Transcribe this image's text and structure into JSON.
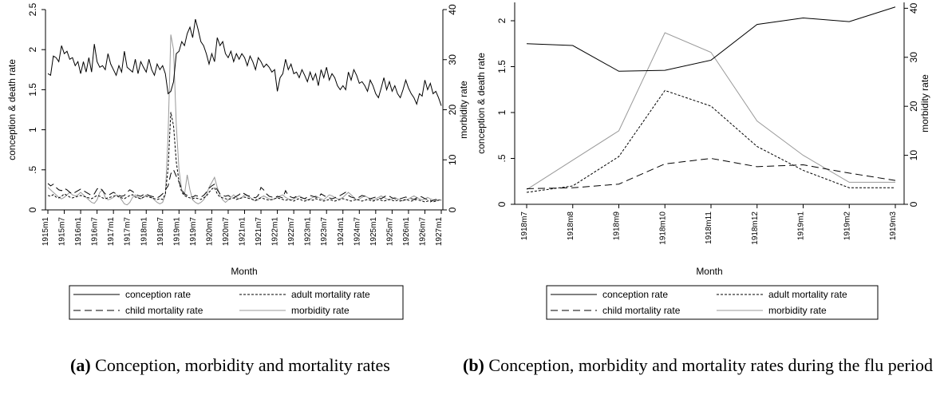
{
  "chart_data": [
    {
      "type": "line",
      "xlabel": "Month",
      "ylabel": "conception & death rate",
      "y2label": "morbidity rate",
      "caption_label": "(a)",
      "caption": "Conception, morbidity and mortality rates",
      "categories": [
        "1915m1",
        null,
        null,
        null,
        null,
        null,
        "1915m7",
        null,
        null,
        null,
        null,
        null,
        "1916m1",
        null,
        null,
        null,
        null,
        null,
        "1916m7",
        null,
        null,
        null,
        null,
        null,
        "1917m1",
        null,
        null,
        null,
        null,
        null,
        "1917m7",
        null,
        null,
        null,
        null,
        null,
        "1918m1",
        null,
        null,
        null,
        null,
        null,
        "1918m7",
        null,
        null,
        null,
        null,
        null,
        "1919m1",
        null,
        null,
        null,
        null,
        null,
        "1919m7",
        null,
        null,
        null,
        null,
        null,
        "1920m1",
        null,
        null,
        null,
        null,
        null,
        "1920m7",
        null,
        null,
        null,
        null,
        null,
        "1921m1",
        null,
        null,
        null,
        null,
        null,
        "1921m7",
        null,
        null,
        null,
        null,
        null,
        "1922m1",
        null,
        null,
        null,
        null,
        null,
        "1922m7",
        null,
        null,
        null,
        null,
        null,
        "1923m1",
        null,
        null,
        null,
        null,
        null,
        "1923m7",
        null,
        null,
        null,
        null,
        null,
        "1924m1",
        null,
        null,
        null,
        null,
        null,
        "1924m7",
        null,
        null,
        null,
        null,
        null,
        "1925m1",
        null,
        null,
        null,
        null,
        null,
        "1925m7",
        null,
        null,
        null,
        null,
        null,
        "1926m1",
        null,
        null,
        null,
        null,
        null,
        "1926m7",
        null,
        null,
        null,
        null,
        null,
        "1927m1"
      ],
      "ylim": [
        0,
        2.5
      ],
      "yticks": [
        0,
        {
          "value": 0.5,
          "label": ".5"
        },
        1,
        1.5,
        2,
        2.5
      ],
      "y2lim": [
        0,
        40
      ],
      "y2ticks": [
        0,
        10,
        20,
        30,
        40
      ],
      "series": [
        {
          "name": "conception rate",
          "color": "#000000",
          "dash": "solid",
          "values": [
            1.7,
            1.68,
            1.92,
            1.9,
            1.85,
            2.05,
            1.95,
            1.98,
            1.88,
            1.9,
            1.8,
            1.85,
            1.7,
            1.85,
            1.72,
            1.9,
            1.72,
            2.07,
            1.85,
            1.78,
            1.8,
            1.75,
            1.95,
            1.82,
            1.75,
            1.68,
            1.8,
            1.72,
            1.98,
            1.78,
            1.75,
            1.72,
            1.88,
            1.7,
            1.85,
            1.78,
            1.72,
            1.88,
            1.75,
            1.68,
            1.82,
            1.75,
            1.8,
            1.7,
            1.45,
            1.48,
            1.6,
            1.95,
            1.98,
            2.1,
            2.05,
            2.2,
            2.28,
            2.15,
            2.38,
            2.25,
            2.1,
            2.05,
            1.95,
            1.82,
            1.95,
            1.85,
            2.15,
            2.05,
            2.1,
            1.95,
            1.9,
            1.98,
            1.85,
            1.95,
            1.88,
            1.95,
            1.9,
            1.8,
            1.92,
            1.85,
            1.75,
            1.9,
            1.85,
            1.78,
            1.82,
            1.78,
            1.72,
            1.75,
            1.48,
            1.65,
            1.7,
            1.88,
            1.75,
            1.82,
            1.7,
            1.72,
            1.65,
            1.75,
            1.68,
            1.6,
            1.72,
            1.62,
            1.7,
            1.55,
            1.75,
            1.65,
            1.78,
            1.62,
            1.7,
            1.65,
            1.55,
            1.5,
            1.55,
            1.5,
            1.72,
            1.62,
            1.75,
            1.68,
            1.58,
            1.6,
            1.55,
            1.48,
            1.62,
            1.55,
            1.45,
            1.4,
            1.52,
            1.65,
            1.5,
            1.6,
            1.48,
            1.55,
            1.45,
            1.4,
            1.5,
            1.62,
            1.52,
            1.45,
            1.4,
            1.32,
            1.45,
            1.42,
            1.62,
            1.5,
            1.58,
            1.45,
            1.48,
            1.4,
            1.3
          ]
        },
        {
          "name": "adult mortality rate",
          "color": "#000000",
          "dash": "short-dash",
          "values": [
            0.18,
            0.17,
            0.19,
            0.16,
            0.15,
            0.17,
            0.2,
            0.18,
            0.16,
            0.15,
            0.16,
            0.17,
            0.18,
            0.17,
            0.16,
            0.15,
            0.14,
            0.16,
            0.18,
            0.17,
            0.15,
            0.14,
            0.15,
            0.16,
            0.17,
            0.18,
            0.16,
            0.15,
            0.14,
            0.16,
            0.18,
            0.19,
            0.16,
            0.15,
            0.14,
            0.16,
            0.17,
            0.16,
            0.15,
            0.14,
            0.13,
            0.14,
            0.13,
            0.2,
            0.52,
            1.22,
            1.05,
            0.6,
            0.35,
            0.22,
            0.18,
            0.16,
            0.15,
            0.14,
            0.15,
            0.14,
            0.13,
            0.15,
            0.17,
            0.22,
            0.26,
            0.28,
            0.2,
            0.16,
            0.15,
            0.14,
            0.13,
            0.14,
            0.15,
            0.13,
            0.14,
            0.15,
            0.16,
            0.15,
            0.14,
            0.13,
            0.12,
            0.14,
            0.15,
            0.14,
            0.13,
            0.12,
            0.13,
            0.14,
            0.15,
            0.14,
            0.13,
            0.12,
            0.13,
            0.12,
            0.11,
            0.13,
            0.14,
            0.12,
            0.11,
            0.12,
            0.13,
            0.12,
            0.14,
            0.13,
            0.12,
            0.11,
            0.12,
            0.13,
            0.12,
            0.11,
            0.12,
            0.13,
            0.14,
            0.13,
            0.12,
            0.11,
            0.12,
            0.13,
            0.12,
            0.11,
            0.12,
            0.13,
            0.12,
            0.11,
            0.12,
            0.13,
            0.12,
            0.11,
            0.12,
            0.13,
            0.12,
            0.11,
            0.12,
            0.11,
            0.12,
            0.13,
            0.12,
            0.11,
            0.12,
            0.13,
            0.12,
            0.11,
            0.1,
            0.11,
            0.12,
            0.1,
            0.11,
            0.12,
            0.13
          ]
        },
        {
          "name": "child mortality rate",
          "color": "#000000",
          "dash": "long-dash",
          "values": [
            0.33,
            0.3,
            0.32,
            0.28,
            0.25,
            0.24,
            0.27,
            0.25,
            0.22,
            0.2,
            0.22,
            0.24,
            0.26,
            0.24,
            0.22,
            0.2,
            0.18,
            0.2,
            0.26,
            0.28,
            0.24,
            0.2,
            0.18,
            0.2,
            0.22,
            0.2,
            0.18,
            0.17,
            0.18,
            0.22,
            0.25,
            0.23,
            0.2,
            0.18,
            0.17,
            0.19,
            0.2,
            0.18,
            0.17,
            0.16,
            0.15,
            0.17,
            0.2,
            0.25,
            0.3,
            0.45,
            0.5,
            0.42,
            0.35,
            0.25,
            0.2,
            0.18,
            0.17,
            0.16,
            0.18,
            0.17,
            0.16,
            0.18,
            0.22,
            0.27,
            0.3,
            0.32,
            0.25,
            0.2,
            0.18,
            0.17,
            0.18,
            0.16,
            0.15,
            0.17,
            0.19,
            0.22,
            0.2,
            0.18,
            0.17,
            0.16,
            0.15,
            0.18,
            0.28,
            0.25,
            0.2,
            0.17,
            0.16,
            0.15,
            0.17,
            0.16,
            0.15,
            0.24,
            0.18,
            0.16,
            0.15,
            0.17,
            0.16,
            0.15,
            0.14,
            0.16,
            0.18,
            0.17,
            0.16,
            0.15,
            0.2,
            0.18,
            0.16,
            0.15,
            0.14,
            0.15,
            0.17,
            0.18,
            0.2,
            0.22,
            0.18,
            0.16,
            0.15,
            0.14,
            0.16,
            0.18,
            0.17,
            0.15,
            0.14,
            0.15,
            0.16,
            0.15,
            0.14,
            0.16,
            0.18,
            0.17,
            0.15,
            0.14,
            0.13,
            0.14,
            0.15,
            0.16,
            0.15,
            0.14,
            0.13,
            0.15,
            0.17,
            0.16,
            0.14,
            0.13,
            0.1,
            0.12,
            0.13,
            0.12,
            0.12
          ]
        },
        {
          "name": "morbidity rate",
          "color": "#999999",
          "dash": "solid",
          "axis": "y2",
          "values": [
            4.5,
            4,
            3.5,
            3,
            2.5,
            2.2,
            2.5,
            3,
            3.5,
            3,
            2.8,
            3,
            3.5,
            3,
            2.5,
            2,
            1.5,
            1.3,
            2,
            3.5,
            4,
            2.5,
            2,
            2.2,
            2.5,
            3,
            2.8,
            2,
            1.2,
            1,
            1.5,
            2.5,
            3,
            2.5,
            2.2,
            2.5,
            3,
            2.8,
            2.5,
            2,
            1.5,
            1.2,
            1.5,
            3,
            15,
            35,
            32,
            17,
            8,
            4,
            3,
            7,
            4,
            2,
            1.5,
            1.2,
            1.5,
            2,
            3,
            4.5,
            5.5,
            6.5,
            4.5,
            3,
            2,
            1.5,
            2,
            2.5,
            3,
            2.5,
            2.2,
            2.5,
            3,
            2.8,
            2.5,
            2,
            1.8,
            2,
            2.5,
            2.8,
            2.5,
            2.2,
            2,
            2.2,
            2.5,
            2.8,
            3,
            2.5,
            2.2,
            2,
            2.2,
            2.5,
            2.8,
            2.5,
            2.2,
            2,
            2.2,
            2.5,
            2.8,
            2.5,
            2.2,
            2,
            2.5,
            3,
            2.8,
            2.5,
            2.2,
            2.2,
            2.5,
            3,
            3.5,
            3,
            2.5,
            2,
            2.2,
            2.5,
            2.8,
            2.5,
            2.2,
            2,
            2.2,
            2.5,
            2.8,
            2.5,
            2.2,
            2,
            2.2,
            2.5,
            2.2,
            2,
            1.8,
            2,
            2.2,
            2.5,
            2.8,
            2.5,
            2.2,
            2,
            2.2,
            2.5,
            2.2,
            2,
            1.8,
            2,
            2
          ]
        }
      ]
    },
    {
      "type": "line",
      "xlabel": "Month",
      "ylabel": "conception & death rate",
      "y2label": "morbidity rate",
      "caption_label": "(b)",
      "caption": "Conception, morbidity and mortality rates during the flu period",
      "categories": [
        "1918m7",
        "1918m8",
        "1918m9",
        "1918m10",
        "1918m11",
        "1918m12",
        "1919m1",
        "1919m2",
        "1919m3"
      ],
      "ylim": [
        0,
        2.2
      ],
      "yticks": [
        0,
        {
          "value": 0.5,
          "label": ".5"
        },
        1,
        1.5,
        2
      ],
      "y2lim": [
        0,
        41.2
      ],
      "y2ticks": [
        0,
        10,
        20,
        30,
        40
      ],
      "series": [
        {
          "name": "conception rate",
          "color": "#000000",
          "dash": "solid",
          "values": [
            1.75,
            1.73,
            1.45,
            1.46,
            1.57,
            1.96,
            2.03,
            1.99,
            2.15
          ]
        },
        {
          "name": "adult mortality rate",
          "color": "#000000",
          "dash": "short-dash",
          "values": [
            0.13,
            0.2,
            0.52,
            1.24,
            1.07,
            0.63,
            0.37,
            0.18,
            0.18
          ]
        },
        {
          "name": "child mortality rate",
          "color": "#000000",
          "dash": "long-dash",
          "values": [
            0.17,
            0.18,
            0.22,
            0.44,
            0.5,
            0.41,
            0.43,
            0.34,
            0.26
          ]
        },
        {
          "name": "morbidity rate",
          "color": "#999999",
          "dash": "solid",
          "axis": "y2",
          "values": [
            3,
            9,
            15,
            35,
            31,
            17,
            10,
            4.5,
            4.5
          ]
        }
      ]
    }
  ]
}
